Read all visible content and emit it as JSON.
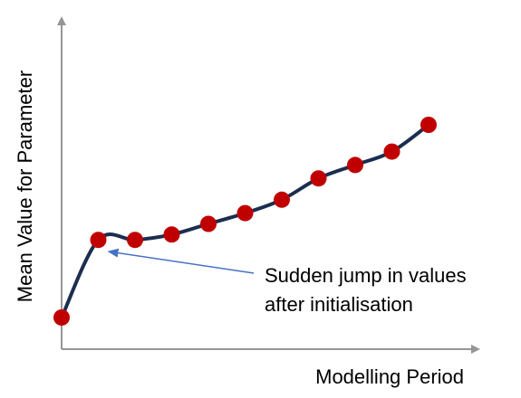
{
  "chart_data": {
    "type": "line",
    "title": "",
    "xlabel": "Modelling Period",
    "ylabel": "Mean Value for Parameter",
    "x": [
      1,
      2,
      3,
      4,
      5,
      6,
      7,
      8,
      9,
      10,
      11
    ],
    "series": [
      {
        "values": [
          0.0,
          0.29,
          0.29,
          0.31,
          0.35,
          0.39,
          0.44,
          0.52,
          0.57,
          0.62,
          0.72
        ]
      }
    ],
    "markers": true,
    "grid": false,
    "legend": "none",
    "annotations": [
      {
        "text_lines": [
          "Sudden jump in values",
          "after initialisation"
        ],
        "points_to_index": 1
      }
    ]
  },
  "colors": {
    "line": "#1c2e4f",
    "marker": "#c00000",
    "axis": "#969696",
    "arrow": "#4472c4"
  }
}
